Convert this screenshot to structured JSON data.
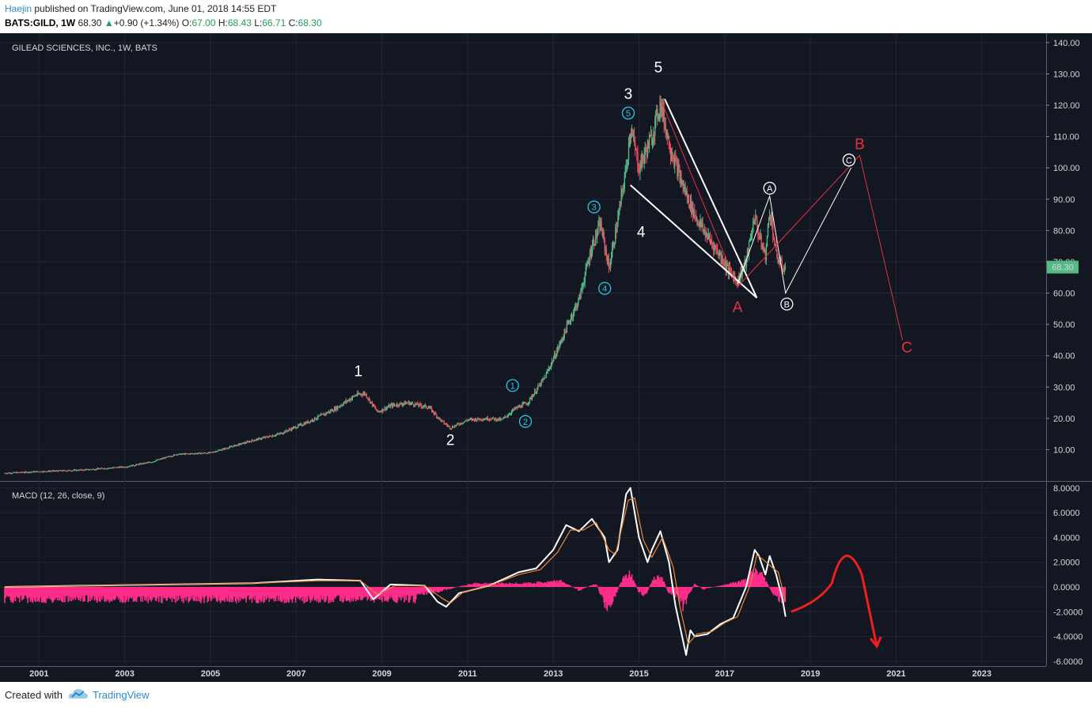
{
  "header": {
    "author": "Haejin",
    "published": "published on TradingView.com, June 01, 2018 14:55 EDT",
    "symbol": "BATS:GILD, 1W",
    "last": "68.30",
    "change_arrow": "▲",
    "change": "+0.90 (+1.34%)",
    "o_label": "O:",
    "o_val": "67.00",
    "h_label": "H:",
    "h_val": "68.43",
    "l_label": "L:",
    "l_val": "66.71",
    "c_label": "C:",
    "c_val": "68.30"
  },
  "footer": {
    "created_with": "Created with",
    "brand": "TradingView",
    "logo_icon": "tradingview-cloud-icon"
  },
  "chart_data": [
    {
      "type": "candlestick",
      "title": "GILEAD SCIENCES, INC., 1W, BATS",
      "price_badge": "68.30",
      "price_badge_value": 68.3,
      "ylim": [
        0,
        143
      ],
      "y_ticks": [
        "140.00",
        "130.00",
        "120.00",
        "110.00",
        "100.00",
        "90.00",
        "80.00",
        "70.00",
        "60.00",
        "50.00",
        "40.00",
        "30.00",
        "20.00",
        "10.00"
      ],
      "y_tick_values": [
        140,
        130,
        120,
        110,
        100,
        90,
        80,
        70,
        60,
        50,
        40,
        30,
        20,
        10
      ],
      "xlim": [
        2000.2,
        2024.5
      ],
      "x_ticks": [
        "2001",
        "2003",
        "2005",
        "2007",
        "2009",
        "2011",
        "2013",
        "2015",
        "2017",
        "2019",
        "2021",
        "2023"
      ],
      "x_tick_values": [
        2001,
        2003,
        2005,
        2007,
        2009,
        2011,
        2013,
        2015,
        2017,
        2019,
        2021,
        2023
      ],
      "price_path": [
        [
          2000.2,
          2.5
        ],
        [
          2001,
          3
        ],
        [
          2002,
          3.5
        ],
        [
          2003,
          4.5
        ],
        [
          2003.6,
          6
        ],
        [
          2004.2,
          8.5
        ],
        [
          2005,
          9
        ],
        [
          2006,
          13
        ],
        [
          2006.6,
          15
        ],
        [
          2007.3,
          19
        ],
        [
          2007.9,
          23
        ],
        [
          2008.4,
          27.5
        ],
        [
          2008.6,
          28
        ],
        [
          2008.9,
          22
        ],
        [
          2009.2,
          24
        ],
        [
          2009.6,
          25
        ],
        [
          2010.1,
          23.5
        ],
        [
          2010.4,
          19
        ],
        [
          2010.6,
          17
        ],
        [
          2011,
          19.5
        ],
        [
          2011.5,
          20
        ],
        [
          2011.8,
          19.5
        ],
        [
          2012.1,
          23
        ],
        [
          2012.4,
          25
        ],
        [
          2012.8,
          33
        ],
        [
          2013.1,
          42
        ],
        [
          2013.4,
          52
        ],
        [
          2013.6,
          58
        ],
        [
          2013.9,
          75
        ],
        [
          2014.1,
          82
        ],
        [
          2014.3,
          68
        ],
        [
          2014.5,
          83
        ],
        [
          2014.7,
          100
        ],
        [
          2014.8,
          113
        ],
        [
          2015,
          100
        ],
        [
          2015.3,
          110
        ],
        [
          2015.5,
          121
        ],
        [
          2015.7,
          108
        ],
        [
          2016,
          95
        ],
        [
          2016.3,
          85
        ],
        [
          2016.6,
          78
        ],
        [
          2016.9,
          72
        ],
        [
          2017.1,
          67
        ],
        [
          2017.3,
          64
        ],
        [
          2017.5,
          70
        ],
        [
          2017.7,
          85
        ],
        [
          2017.8,
          78
        ],
        [
          2017.95,
          72
        ],
        [
          2018.05,
          87
        ],
        [
          2018.2,
          72
        ],
        [
          2018.35,
          68
        ],
        [
          2018.42,
          68.3
        ]
      ],
      "wave_labels": [
        {
          "text": "1",
          "x": 2008.45,
          "y": 33.5,
          "color": "white"
        },
        {
          "text": "2",
          "x": 2010.6,
          "y": 11.5,
          "color": "white"
        },
        {
          "text": "3",
          "x": 2014.75,
          "y": 122,
          "color": "white"
        },
        {
          "text": "4",
          "x": 2015.05,
          "y": 78,
          "color": "white"
        },
        {
          "text": "5",
          "x": 2015.45,
          "y": 130.5,
          "color": "white"
        },
        {
          "text": "A",
          "x": 2017.3,
          "y": 54,
          "color": "red"
        },
        {
          "text": "B",
          "x": 2020.15,
          "y": 106,
          "color": "red"
        },
        {
          "text": "C",
          "x": 2021.25,
          "y": 41,
          "color": "red"
        }
      ],
      "circle_labels": [
        {
          "text": "1",
          "x": 2012.05,
          "y": 30.5,
          "color": "cyan"
        },
        {
          "text": "2",
          "x": 2012.35,
          "y": 19,
          "color": "cyan"
        },
        {
          "text": "3",
          "x": 2013.95,
          "y": 87.5,
          "color": "cyan"
        },
        {
          "text": "4",
          "x": 2014.2,
          "y": 61.5,
          "color": "cyan"
        },
        {
          "text": "5",
          "x": 2014.75,
          "y": 117.5,
          "color": "cyan"
        },
        {
          "text": "A",
          "x": 2018.05,
          "y": 93.5,
          "color": "white"
        },
        {
          "text": "B",
          "x": 2018.45,
          "y": 56.5,
          "color": "white"
        },
        {
          "text": "C",
          "x": 2019.9,
          "y": 102.5,
          "color": "white"
        }
      ],
      "white_wedge_upper": [
        [
          2015.6,
          122
        ],
        [
          2017.75,
          58.5
        ]
      ],
      "white_wedge_lower": [
        [
          2014.8,
          94.5
        ],
        [
          2017.75,
          58.5
        ]
      ],
      "white_projection": [
        [
          2017.3,
          63
        ],
        [
          2018.05,
          91
        ],
        [
          2018.42,
          60
        ],
        [
          2019.95,
          100
        ]
      ],
      "red_projection": [
        [
          2017.3,
          62
        ],
        [
          2020.15,
          104
        ],
        [
          2021.15,
          45
        ]
      ],
      "red_wave": [
        [
          2015.5,
          122
        ],
        [
          2017.3,
          62
        ]
      ]
    },
    {
      "type": "line",
      "title": "MACD (12, 26, close, 9)",
      "ylim": [
        -6.2,
        8.5
      ],
      "y_ticks": [
        "8.0000",
        "6.0000",
        "4.0000",
        "2.0000",
        "0.0000",
        "-2.0000",
        "-4.0000",
        "-6.0000"
      ],
      "y_tick_values": [
        8,
        6,
        4,
        2,
        0,
        -2,
        -4,
        -6
      ],
      "series": [
        {
          "name": "MACD",
          "color": "white",
          "points": [
            [
              2000.2,
              0
            ],
            [
              2002,
              0.1
            ],
            [
              2004,
              0.2
            ],
            [
              2006,
              0.3
            ],
            [
              2007.5,
              0.6
            ],
            [
              2008.5,
              0.5
            ],
            [
              2008.8,
              -1
            ],
            [
              2009.2,
              0.2
            ],
            [
              2010,
              0.1
            ],
            [
              2010.3,
              -1.2
            ],
            [
              2010.5,
              -1.6
            ],
            [
              2010.8,
              -0.5
            ],
            [
              2011.5,
              0.1
            ],
            [
              2012.2,
              1.2
            ],
            [
              2012.6,
              1.5
            ],
            [
              2013,
              3
            ],
            [
              2013.3,
              5
            ],
            [
              2013.6,
              4.5
            ],
            [
              2013.9,
              5.5
            ],
            [
              2014.2,
              4
            ],
            [
              2014.3,
              2
            ],
            [
              2014.5,
              3
            ],
            [
              2014.7,
              7.5
            ],
            [
              2014.8,
              8
            ],
            [
              2015,
              4
            ],
            [
              2015.2,
              2
            ],
            [
              2015.3,
              3
            ],
            [
              2015.5,
              4.5
            ],
            [
              2015.7,
              2
            ],
            [
              2015.85,
              -1.5
            ],
            [
              2016.1,
              -5.5
            ],
            [
              2016.2,
              -3.5
            ],
            [
              2016.3,
              -4
            ],
            [
              2016.6,
              -3.8
            ],
            [
              2016.9,
              -3
            ],
            [
              2017.2,
              -2.5
            ],
            [
              2017.5,
              0
            ],
            [
              2017.7,
              3
            ],
            [
              2017.8,
              2.5
            ],
            [
              2017.95,
              1
            ],
            [
              2018.05,
              2.5
            ],
            [
              2018.2,
              1
            ],
            [
              2018.35,
              -1
            ],
            [
              2018.42,
              -2.4
            ]
          ]
        },
        {
          "name": "Signal",
          "color": "#e8883a",
          "points": [
            [
              2000.2,
              0
            ],
            [
              2002,
              0.1
            ],
            [
              2004,
              0.2
            ],
            [
              2006,
              0.3
            ],
            [
              2007.5,
              0.5
            ],
            [
              2008.5,
              0.5
            ],
            [
              2008.9,
              -0.6
            ],
            [
              2009.3,
              0.1
            ],
            [
              2010,
              0.1
            ],
            [
              2010.4,
              -0.9
            ],
            [
              2010.6,
              -1.3
            ],
            [
              2010.9,
              -0.4
            ],
            [
              2011.5,
              0.1
            ],
            [
              2012.2,
              1
            ],
            [
              2012.7,
              1.4
            ],
            [
              2013.1,
              2.8
            ],
            [
              2013.4,
              4.6
            ],
            [
              2013.7,
              4.6
            ],
            [
              2014,
              5.2
            ],
            [
              2014.3,
              3
            ],
            [
              2014.45,
              2.6
            ],
            [
              2014.75,
              7
            ],
            [
              2014.9,
              7.2
            ],
            [
              2015.1,
              3.8
            ],
            [
              2015.3,
              2.4
            ],
            [
              2015.55,
              4
            ],
            [
              2015.8,
              1.6
            ],
            [
              2015.95,
              -1.5
            ],
            [
              2016.15,
              -4.6
            ],
            [
              2016.35,
              -3.8
            ],
            [
              2016.7,
              -3.6
            ],
            [
              2017,
              -2.9
            ],
            [
              2017.3,
              -2.4
            ],
            [
              2017.6,
              0.2
            ],
            [
              2017.75,
              2.6
            ],
            [
              2017.9,
              2.2
            ],
            [
              2018.1,
              1.6
            ],
            [
              2018.25,
              1.2
            ],
            [
              2018.42,
              -1.2
            ]
          ]
        }
      ],
      "histogram": [
        [
          2009.8,
          -0.6
        ],
        [
          2010.2,
          -0.5
        ],
        [
          2011.1,
          0.3
        ],
        [
          2012.3,
          0.3
        ],
        [
          2013.2,
          0.5
        ],
        [
          2013.6,
          -0.3
        ],
        [
          2014,
          0.3
        ],
        [
          2014.2,
          -1.5
        ],
        [
          2014.3,
          -2
        ],
        [
          2014.6,
          0.6
        ],
        [
          2014.8,
          1.2
        ],
        [
          2015,
          -0.5
        ],
        [
          2015.15,
          -0.8
        ],
        [
          2015.35,
          0.9
        ],
        [
          2015.55,
          0.7
        ],
        [
          2015.7,
          -0.6
        ],
        [
          2015.9,
          -1
        ],
        [
          2016.05,
          -1.8
        ],
        [
          2016.3,
          0.3
        ],
        [
          2016.5,
          -0.2
        ],
        [
          2017.5,
          0.6
        ],
        [
          2017.7,
          1.5
        ],
        [
          2017.9,
          1
        ],
        [
          2018.1,
          -0.5
        ],
        [
          2018.3,
          -1.2
        ],
        [
          2018.42,
          -1.1
        ]
      ],
      "red_arrow_path": [
        [
          2018.55,
          -2
        ],
        [
          2019.2,
          -1.2
        ],
        [
          2019.8,
          1.8
        ],
        [
          2020.2,
          1
        ],
        [
          2020.55,
          -4.8
        ]
      ]
    }
  ]
}
